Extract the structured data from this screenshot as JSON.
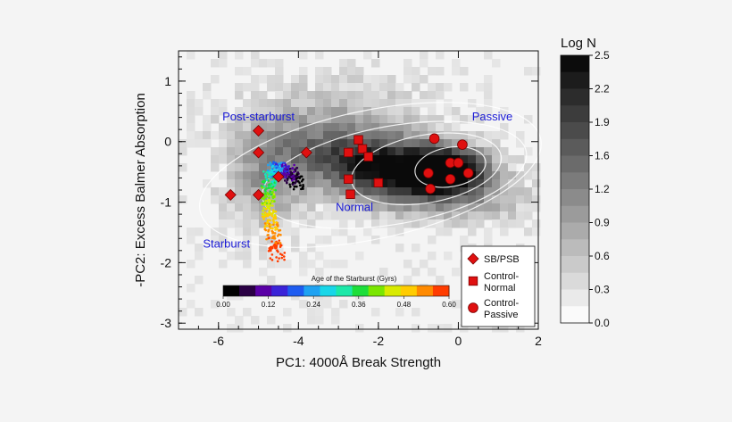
{
  "chart_data": {
    "type": "scatter",
    "xlabel": "PC1: 4000Å Break Strength",
    "ylabel": "-PC2: Excess Balmer Absorption",
    "xlim": [
      -7,
      2
    ],
    "ylim": [
      -3.1,
      1.5
    ],
    "xticks": [
      -6,
      -4,
      -2,
      0,
      2
    ],
    "yticks": [
      1,
      0,
      -1,
      -2,
      -3
    ],
    "xtick_labels": [
      "-6",
      "-4",
      "-2",
      "0",
      "2"
    ],
    "ytick_labels": [
      "1",
      "0",
      "-1",
      "-2",
      "-3"
    ],
    "region_labels": [
      {
        "text": "Post-starburst",
        "x": -5.0,
        "y": 0.35
      },
      {
        "text": "Passive",
        "x": 0.85,
        "y": 0.35
      },
      {
        "text": "Normal",
        "x": -2.6,
        "y": -1.15
      },
      {
        "text": "Starburst",
        "x": -5.8,
        "y": -1.75
      }
    ],
    "density_colorbar": {
      "title": "Log N",
      "ticks": [
        "2.5",
        "2.2",
        "1.9",
        "1.6",
        "1.2",
        "0.9",
        "0.6",
        "0.3",
        "0.0"
      ],
      "range": [
        0.0,
        2.5
      ]
    },
    "age_colorbar": {
      "title": "Age of the Starburst (Gyrs)",
      "ticks": [
        "0.00",
        "0.12",
        "0.24",
        "0.36",
        "0.48",
        "0.60"
      ],
      "range": [
        0.0,
        0.6
      ],
      "colors": [
        "#000000",
        "#2a0044",
        "#5a00a6",
        "#3a23d8",
        "#1e5cf0",
        "#1fa2f2",
        "#18d6e8",
        "#1ce8a8",
        "#1dde3a",
        "#7ae600",
        "#d8ea00",
        "#ffcc00",
        "#ff8a00",
        "#ff3c00"
      ]
    },
    "series": [
      {
        "name": "SB/PSB",
        "marker": "diamond",
        "color": "#e01010",
        "points": [
          [
            -5.0,
            0.18
          ],
          [
            -5.0,
            -0.18
          ],
          [
            -4.5,
            -0.58
          ],
          [
            -3.8,
            -0.18
          ],
          [
            -5.7,
            -0.88
          ],
          [
            -5.0,
            -0.88
          ]
        ]
      },
      {
        "name": "Control-Normal",
        "marker": "square",
        "color": "#e01010",
        "points": [
          [
            -2.5,
            0.03
          ],
          [
            -2.4,
            -0.12
          ],
          [
            -2.25,
            -0.25
          ],
          [
            -2.75,
            -0.18
          ],
          [
            -2.75,
            -0.62
          ],
          [
            -2.0,
            -0.68
          ],
          [
            -2.7,
            -0.87
          ]
        ]
      },
      {
        "name": "Control-Passive",
        "marker": "circle",
        "color": "#e01010",
        "points": [
          [
            -0.6,
            0.05
          ],
          [
            0.1,
            -0.05
          ],
          [
            -0.75,
            -0.52
          ],
          [
            -0.2,
            -0.35
          ],
          [
            0.0,
            -0.35
          ],
          [
            -0.2,
            -0.62
          ],
          [
            0.25,
            -0.52
          ],
          [
            -0.7,
            -0.78
          ]
        ]
      }
    ],
    "legend": {
      "position": "bottom-right",
      "entries": [
        {
          "label": "SB/PSB",
          "marker": "diamond"
        },
        {
          "label": "Control-\nNormal",
          "marker": "square"
        },
        {
          "label": "Control-\nPassive",
          "marker": "circle"
        }
      ]
    }
  }
}
